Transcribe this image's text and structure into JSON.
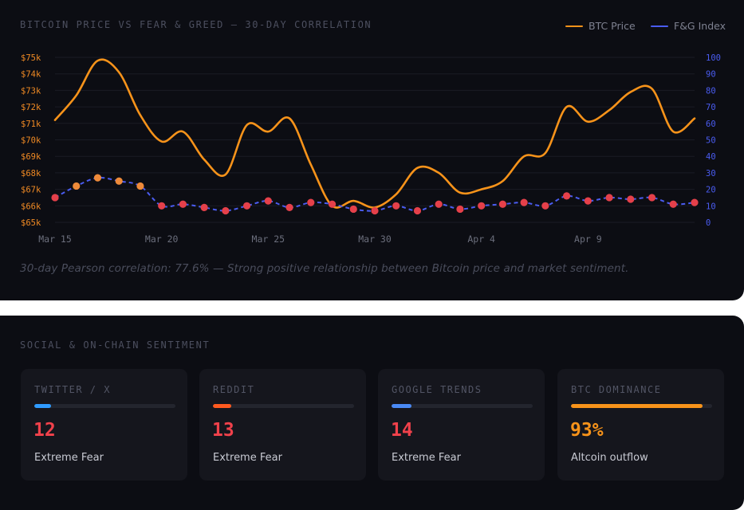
{
  "chart_section": {
    "title": "BITCOIN PRICE VS FEAR & GREED — 30-DAY CORRELATION",
    "note": "30-day Pearson correlation: 77.6% — Strong positive relationship between Bitcoin price and market sentiment."
  },
  "colors": {
    "btc_line": "#f7931a",
    "fg_line": "#4a5cf0",
    "fg_point_fear": "#e5404a",
    "fg_point_neutral": "#ee8a3a",
    "grid": "#1a1c25",
    "left_axis_text": "#f08a24",
    "right_axis_text": "#4a5cf0",
    "x_axis_text": "#6b6e7c"
  },
  "chart_data": {
    "type": "line",
    "x": [
      "Mar 15",
      "Mar 16",
      "Mar 17",
      "Mar 18",
      "Mar 19",
      "Mar 20",
      "Mar 21",
      "Mar 22",
      "Mar 23",
      "Mar 24",
      "Mar 25",
      "Mar 26",
      "Mar 27",
      "Mar 28",
      "Mar 29",
      "Mar 30",
      "Mar 31",
      "Apr 1",
      "Apr 2",
      "Apr 3",
      "Apr 4",
      "Apr 5",
      "Apr 6",
      "Apr 7",
      "Apr 8",
      "Apr 9",
      "Apr 10",
      "Apr 11",
      "Apr 12",
      "Apr 13",
      "Apr 14"
    ],
    "x_tick_labels": [
      "Mar 15",
      "Mar 20",
      "Mar 25",
      "Mar 30",
      "Apr 4",
      "Apr 9"
    ],
    "left_axis": {
      "ticks": [
        "$65k",
        "$66k",
        "$67k",
        "$68k",
        "$69k",
        "$70k",
        "$71k",
        "$72k",
        "$73k",
        "$74k",
        "$75k"
      ],
      "ylim": [
        65000,
        75000
      ]
    },
    "right_axis": {
      "ticks": [
        "0",
        "10",
        "20",
        "30",
        "40",
        "50",
        "60",
        "70",
        "80",
        "90",
        "100"
      ],
      "ylim": [
        0,
        100
      ]
    },
    "series": [
      {
        "name": "BTC Price",
        "axis": "left",
        "style": "solid",
        "values": [
          71200,
          72700,
          74800,
          74100,
          71500,
          69900,
          70500,
          68800,
          67900,
          70900,
          70500,
          71300,
          68500,
          66000,
          66300,
          65900,
          66700,
          68300,
          68000,
          66800,
          67000,
          67500,
          69000,
          69200,
          72000,
          71100,
          71800,
          72900,
          73100,
          70500,
          71300
        ]
      },
      {
        "name": "F&G Index",
        "axis": "right",
        "style": "dashed",
        "values": [
          15,
          22,
          27,
          25,
          22,
          10,
          11,
          9,
          7,
          10,
          13,
          9,
          12,
          11,
          8,
          7,
          10,
          7,
          11,
          8,
          10,
          11,
          12,
          10,
          16,
          13,
          15,
          14,
          15,
          11,
          12
        ]
      }
    ]
  },
  "social_section": {
    "title": "SOCIAL & ON-CHAIN SENTIMENT",
    "cards": [
      {
        "label": "TWITTER / X",
        "value": "12",
        "status": "Extreme Fear",
        "fill": 0.12,
        "fill_color": "#2f9bff",
        "value_color": "#f0414b"
      },
      {
        "label": "REDDIT",
        "value": "13",
        "status": "Extreme Fear",
        "fill": 0.13,
        "fill_color": "#ff5a1f",
        "value_color": "#f0414b"
      },
      {
        "label": "GOOGLE TRENDS",
        "value": "14",
        "status": "Extreme Fear",
        "fill": 0.14,
        "fill_color": "#4a8af4",
        "value_color": "#f0414b"
      },
      {
        "label": "BTC DOMINANCE",
        "value": "93%",
        "status": "Altcoin outflow",
        "fill": 0.93,
        "fill_color": "#f7931a",
        "value_color": "#f7931a"
      }
    ]
  }
}
